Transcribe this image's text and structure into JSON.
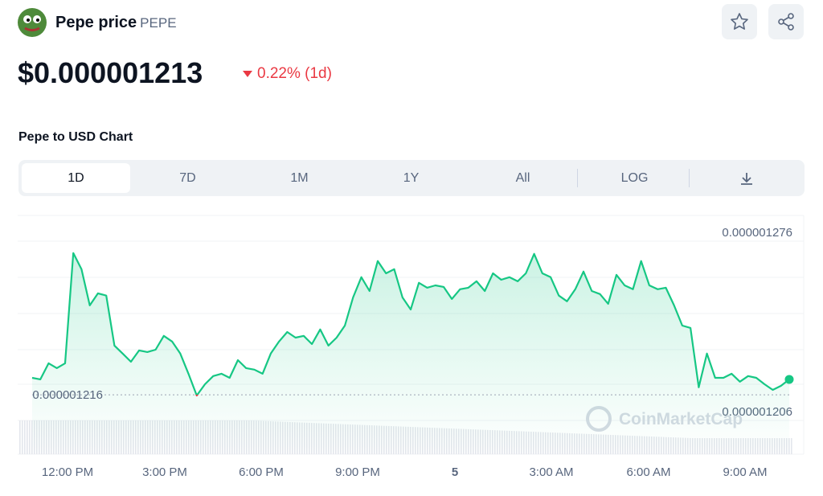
{
  "header": {
    "name": "Pepe price",
    "symbol": "PEPE",
    "price": "$0.000001213",
    "change": "0.22% (1d)"
  },
  "section_title": "Pepe to USD Chart",
  "tabs": [
    "1D",
    "7D",
    "1M",
    "1Y",
    "All",
    "LOG"
  ],
  "chart_data": {
    "type": "line",
    "values": [
      1.2226e-06,
      1.222e-06,
      1.2283e-06,
      1.2264e-06,
      1.2283e-06,
      1.2713e-06,
      1.265e-06,
      1.2509e-06,
      1.2556e-06,
      1.2547e-06,
      1.2352e-06,
      1.2321e-06,
      1.2289e-06,
      1.2333e-06,
      1.2327e-06,
      1.2336e-06,
      1.239e-06,
      1.2368e-06,
      1.2321e-06,
      1.2242e-06,
      1.2157e-06,
      1.2201e-06,
      1.2233e-06,
      1.2242e-06,
      1.2226e-06,
      1.2295e-06,
      1.2264e-06,
      1.2258e-06,
      1.2242e-06,
      1.2321e-06,
      1.2368e-06,
      1.2405e-06,
      1.2383e-06,
      1.239e-06,
      1.2358e-06,
      1.2415e-06,
      1.2352e-06,
      1.2383e-06,
      1.243e-06,
      1.254e-06,
      1.2619e-06,
      1.2565e-06,
      1.2682e-06,
      1.2634e-06,
      1.265e-06,
      1.254e-06,
      1.2493e-06,
      1.2597e-06,
      1.2578e-06,
      1.2587e-06,
      1.2581e-06,
      1.2534e-06,
      1.2572e-06,
      1.2578e-06,
      1.2603e-06,
      1.2565e-06,
      1.2634e-06,
      1.2609e-06,
      1.2619e-06,
      1.2603e-06,
      1.2634e-06,
      1.271e-06,
      1.2634e-06,
      1.2619e-06,
      1.2547e-06,
      1.2525e-06,
      1.2572e-06,
      1.2641e-06,
      1.2565e-06,
      1.2553e-06,
      1.2515e-06,
      1.2628e-06,
      1.2587e-06,
      1.2572e-06,
      1.2682e-06,
      1.2587e-06,
      1.2572e-06,
      1.2578e-06,
      1.2509e-06,
      1.243e-06,
      1.2421e-06,
      1.2189e-06,
      1.2321e-06,
      1.2226e-06,
      1.2226e-06,
      1.2242e-06,
      1.2211e-06,
      1.2233e-06,
      1.2226e-06,
      1.2201e-06,
      1.2179e-06,
      1.2195e-06,
      1.222e-06
    ],
    "ylim": [
      1.1928e-06,
      1.286e-06
    ],
    "yticks": [
      1.276e-06,
      1.206e-06
    ],
    "reference": 1.216e-06,
    "up_color": "#16c784",
    "down_color": "#ea3943",
    "xlabels": [
      "12:00 PM",
      "3:00 PM",
      "6:00 PM",
      "9:00 PM",
      "5",
      "3:00 AM",
      "6:00 AM",
      "9:00 AM"
    ],
    "watermark": "CoinMarketCap"
  }
}
